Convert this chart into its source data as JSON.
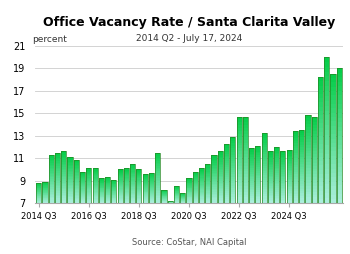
{
  "title": "Office Vacancy Rate / Santa Clarita Valley",
  "subtitle": "2014 Q2 - July 17, 2024",
  "source": "Source: CoStar, NAI Capital",
  "ylabel": "percent",
  "ylim": [
    7,
    21
  ],
  "yticks": [
    7,
    9,
    11,
    13,
    15,
    17,
    19,
    21
  ],
  "xtick_labels": [
    "2014 Q3",
    "2016 Q3",
    "2018 Q3",
    "2020 Q3",
    "2022 Q3",
    "2024 Q3"
  ],
  "xtick_positions": [
    0,
    8,
    16,
    24,
    32,
    40
  ],
  "bar_color_top": "#00cc44",
  "bar_color_bottom": "#aaeedd",
  "bar_edge_color": "#228822",
  "background_color": "#ffffff",
  "values": [
    8.8,
    8.9,
    11.3,
    11.5,
    11.6,
    11.1,
    10.8,
    9.8,
    10.1,
    10.1,
    9.2,
    9.3,
    9.1,
    10.0,
    10.1,
    10.5,
    10.0,
    9.6,
    9.7,
    11.5,
    8.2,
    7.2,
    8.5,
    7.9,
    9.2,
    9.8,
    10.1,
    10.5,
    11.3,
    11.6,
    12.3,
    12.9,
    14.7,
    14.7,
    11.9,
    12.1,
    13.2,
    11.6,
    12.0,
    11.6,
    11.7,
    13.4,
    13.5,
    14.8,
    14.7,
    18.2,
    20.0,
    18.5,
    19.0
  ]
}
